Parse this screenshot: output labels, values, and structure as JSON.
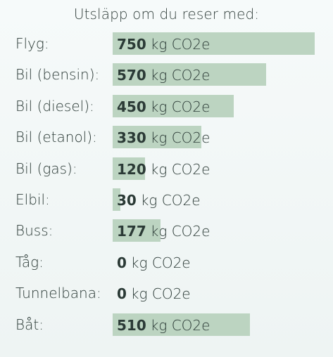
{
  "chart_data": {
    "type": "bar",
    "title": "Utsläpp om du reser med:",
    "unit": "kg CO2e",
    "categories": [
      "Flyg:",
      "Bil (bensin):",
      "Bil (diesel):",
      "Bil (etanol):",
      "Bil (gas):",
      "Elbil:",
      "Buss:",
      "Tåg:",
      "Tunnelbana:",
      "Båt:"
    ],
    "values": [
      750,
      570,
      450,
      330,
      120,
      30,
      177,
      0,
      0,
      510
    ],
    "xlim": [
      0,
      750
    ],
    "bar_color": "#bcd4c1",
    "grid": false
  }
}
